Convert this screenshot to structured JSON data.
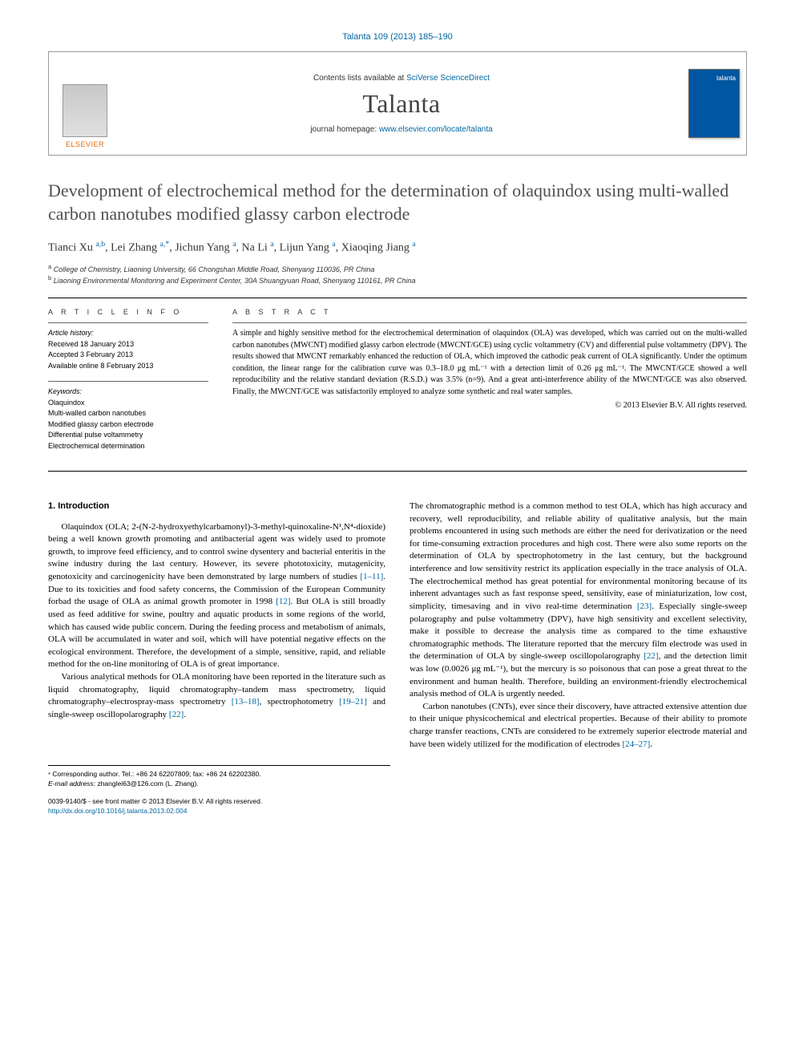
{
  "header": {
    "citation": "Talanta 109 (2013) 185–190",
    "contents_prefix": "Contents lists available at ",
    "contents_link": "SciVerse ScienceDirect",
    "journal": "Talanta",
    "homepage_prefix": "journal homepage: ",
    "homepage_url": "www.elsevier.com/locate/talanta",
    "publisher": "ELSEVIER",
    "cover_label": "talanta"
  },
  "title": "Development of electrochemical method for the determination of olaquindox using multi-walled carbon nanotubes modified glassy carbon electrode",
  "authors_html": "Tianci Xu <sup>a,b</sup>, Lei Zhang <sup>a,*</sup>, Jichun Yang <sup>a</sup>, Na Li <sup>a</sup>, Lijun Yang <sup>a</sup>, Xiaoqing Jiang <sup>a</sup>",
  "affiliations": {
    "a": "College of Chemistry, Liaoning University, 66 Chongshan Middle Road, Shenyang 110036, PR China",
    "b": "Liaoning Environmental Monitoring and Experiment Center, 30A Shuangyuan Road, Shenyang 110161, PR China"
  },
  "article_info": {
    "heading": "A R T I C L E   I N F O",
    "history_title": "Article history:",
    "received": "Received 18 January 2013",
    "accepted": "Accepted 3 February 2013",
    "online": "Available online 8 February 2013",
    "keywords_title": "Keywords:",
    "keywords": [
      "Olaquindox",
      "Multi-walled carbon nanotubes",
      "Modified glassy carbon electrode",
      "Differential pulse voltammetry",
      "Electrochemical determination"
    ]
  },
  "abstract": {
    "heading": "A B S T R A C T",
    "text": "A simple and highly sensitive method for the electrochemical determination of olaquindox (OLA) was developed, which was carried out on the multi-walled carbon nanotubes (MWCNT) modified glassy carbon electrode (MWCNT/GCE) using cyclic voltammetry (CV) and differential pulse voltammetry (DPV). The results showed that MWCNT remarkably enhanced the reduction of OLA, which improved the cathodic peak current of OLA significantly. Under the optimum condition, the linear range for the calibration curve was 0.3–18.0 μg mL⁻¹ with a detection limit of 0.26 μg mL⁻¹. The MWCNT/GCE showed a well reproducibility and the relative standard deviation (R.S.D.) was 3.5% (n=9). And a great anti-interference ability of the MWCNT/GCE was also observed. Finally, the MWCNT/GCE was satisfactorily employed to analyze some synthetic and real water samples.",
    "copyright": "© 2013 Elsevier B.V. All rights reserved."
  },
  "body": {
    "intro_heading": "1.  Introduction",
    "p1": "Olaquindox (OLA; 2-(N-2-hydroxyethylcarbamonyl)-3-methyl-quinoxaline-N¹,N⁴-dioxide) being a well known growth promoting and antibacterial agent was widely used to promote growth, to improve feed efficiency, and to control swine dysentery and bacterial enteritis in the swine industry during the last century. However, its severe phototoxicity, mutagenicity, genotoxicity and carcinogenicity have been demonstrated by large numbers of studies [1–11]. Due to its toxicities and food safety concerns, the Commission of the European Community forbad the usage of OLA as animal growth promoter in 1998 [12]. But OLA is still broadly used as feed additive for swine, poultry and aquatic products in some regions of the world, which has caused wide public concern. During the feeding process and metabolism of animals, OLA will be accumulated in water and soil, which will have potential negative effects on the ecological environment. Therefore, the development of a simple, sensitive, rapid, and reliable method for the on-line monitoring of OLA is of great importance.",
    "p2": "Various analytical methods for OLA monitoring have been reported in the literature such as liquid chromatography, liquid chromatography–tandem mass spectrometry, liquid chromatography–electrospray-mass spectrometry [13–18], spectrophotometry [19–21] and single-sweep oscillopolarography [22].",
    "p3": "The chromatographic method is a common method to test OLA, which has high accuracy and recovery, well reproducibility, and reliable ability of qualitative analysis, but the main problems encountered in using such methods are either the need for derivatization or the need for time-consuming extraction procedures and high cost. There were also some reports on the determination of OLA by spectrophotometry in the last century, but the background interference and low sensitivity restrict its application especially in the trace analysis of OLA. The electrochemical method has great potential for environmental monitoring because of its inherent advantages such as fast response speed, sensitivity, ease of miniaturization, low cost, simplicity, timesaving and in vivo real-time determination [23]. Especially single-sweep polarography and pulse voltammetry (DPV), have high sensitivity and excellent selectivity, make it possible to decrease the analysis time as compared to the time exhaustive chromatographic methods. The literature reported that the mercury film electrode was used in the determination of OLA by single-sweep oscillopolarography [22], and the detection limit was low (0.0026 μg mL⁻¹), but the mercury is so poisonous that can pose a great threat to the environment and human health. Therefore, building an environment-friendly electrochemical analysis method of OLA is urgently needed.",
    "p4": "Carbon nanotubes (CNTs), ever since their discovery, have attracted extensive attention due to their unique physicochemical and electrical properties. Because of their ability to promote charge transfer reactions, CNTs are considered to be extremely superior electrode material and have been widely utilized for the modification of electrodes [24–27]."
  },
  "footnote": {
    "corr": "Corresponding author. Tel.: +86 24 62207809; fax: +86 24 62202380.",
    "email_label": "E-mail address:",
    "email": "zhanglei63@126.com (L. Zhang)."
  },
  "doi": {
    "issn": "0039-9140/$ - see front matter © 2013 Elsevier B.V. All rights reserved.",
    "link": "http://dx.doi.org/10.1016/j.talanta.2013.02.004"
  }
}
